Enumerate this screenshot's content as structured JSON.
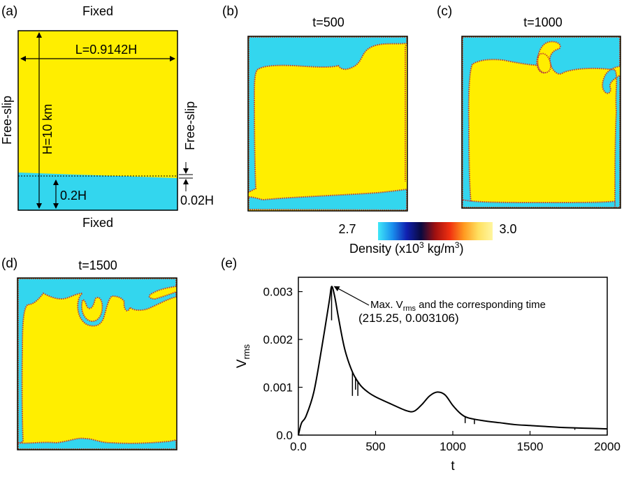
{
  "colors": {
    "light": "#33d6ee",
    "heavy": "#ffee00",
    "interface": "#c43a2e",
    "border": "#000000"
  },
  "panel_a": {
    "letter": "(a)",
    "top_label": "Fixed",
    "bottom_label": "Fixed",
    "left_label": "Free-slip",
    "right_label": "Free-slip",
    "width_label": "L=0.9142H",
    "height_label": "H=10 km",
    "layer_label": "0.2H",
    "perturb_label": "0.02H"
  },
  "panel_b": {
    "letter": "(b)",
    "title": "t=500"
  },
  "panel_c": {
    "letter": "(c)",
    "title": "t=1000"
  },
  "panel_d": {
    "letter": "(d)",
    "title": "t=1500"
  },
  "colorbar": {
    "min_label": "2.7",
    "max_label": "3.0",
    "label_main": "Density (x10",
    "label_sup": "3",
    "label_mid": " kg/m",
    "label_sup2": "3",
    "label_end": ")",
    "stops": [
      "#40e8f8",
      "#1a90ee",
      "#1020b0",
      "#0a0a40",
      "#a01010",
      "#f03010",
      "#ff9a20",
      "#ffe060",
      "#fff6a0"
    ]
  },
  "panel_e": {
    "letter": "(e)"
  },
  "chart_data": {
    "type": "line",
    "title": "",
    "xlabel": "t",
    "ylabel_main": "V",
    "ylabel_sub": "rms",
    "xlim": [
      0,
      2000
    ],
    "ylim": [
      0,
      0.0033
    ],
    "xticks": [
      0,
      500,
      1000,
      1500,
      2000
    ],
    "xtick_labels": [
      "0.0",
      "500",
      "1000",
      "1500",
      "2000"
    ],
    "yticks": [
      0,
      0.001,
      0.002,
      0.003
    ],
    "ytick_labels": [
      "0.0",
      "0.001",
      "0.002",
      "0.003"
    ],
    "series": [
      {
        "x": [
          0,
          20,
          50,
          100,
          150,
          200,
          215.25,
          235,
          260,
          300,
          350,
          400,
          450,
          500,
          600,
          700,
          750,
          800,
          850,
          900,
          950,
          1000,
          1050,
          1100,
          1200,
          1300,
          1400,
          1500,
          1600,
          1700,
          1800,
          1900,
          2000
        ],
        "y": [
          0.0,
          0.00025,
          0.0004,
          0.0009,
          0.0018,
          0.0028,
          0.003106,
          0.0029,
          0.00245,
          0.0018,
          0.00132,
          0.00105,
          0.0009,
          0.0008,
          0.00065,
          0.00051,
          0.0005,
          0.00064,
          0.00082,
          0.0009,
          0.00084,
          0.00062,
          0.00045,
          0.00036,
          0.0003,
          0.00026,
          0.00022,
          0.0002,
          0.00018,
          0.00016,
          0.00015,
          0.00014,
          0.00013
        ]
      }
    ],
    "spikes": [
      {
        "x": 215,
        "y_low": 0.0024
      },
      {
        "x": 350,
        "y_low": 0.00082
      },
      {
        "x": 370,
        "y_low": 0.00095
      },
      {
        "x": 385,
        "y_low": 0.00082
      },
      {
        "x": 1080,
        "y_low": 0.00025
      },
      {
        "x": 1140,
        "y_low": 0.00023
      },
      {
        "x": 1790,
        "y_low": 0.00011
      }
    ],
    "annotation": {
      "line1_pre": "Max. V",
      "line1_sub": "rms",
      "line1_post": "  and the corresponding time",
      "line2": "(215.25, 0.003106)",
      "point": [
        215.25,
        0.003106
      ]
    }
  }
}
